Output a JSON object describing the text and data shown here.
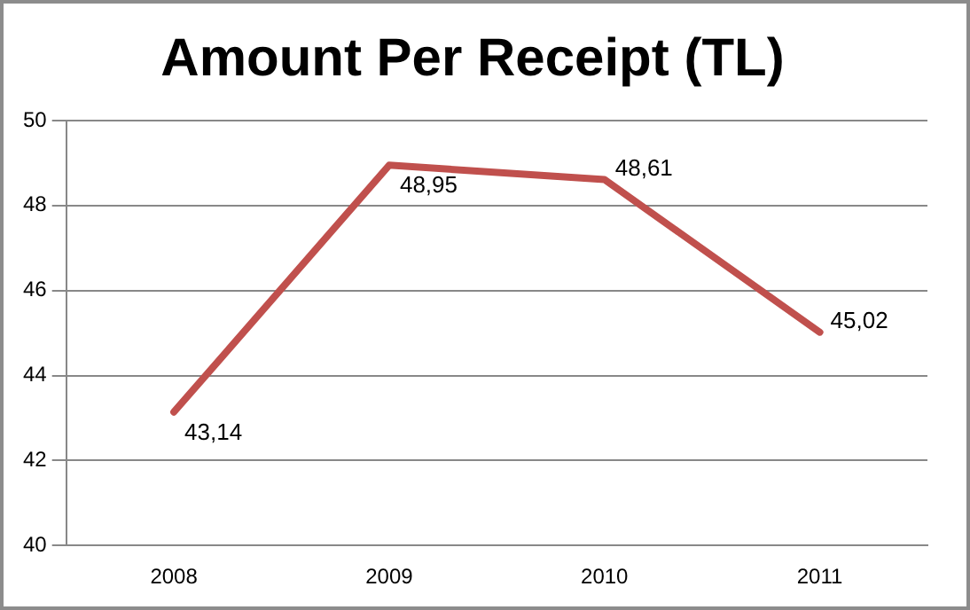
{
  "chart_data": {
    "type": "line",
    "title": "Amount Per Receipt (TL)",
    "categories": [
      "2008",
      "2009",
      "2010",
      "2011"
    ],
    "series": [
      {
        "color": "#c0504d",
        "values": [
          43.14,
          48.95,
          48.61,
          45.02
        ],
        "value_labels": [
          "43,14",
          "48,95",
          "48,61",
          "45,02"
        ]
      }
    ],
    "ylim": [
      40,
      50
    ],
    "yticks": [
      40,
      42,
      44,
      46,
      48,
      50
    ],
    "grid": "y",
    "legend": false,
    "marker": "none"
  }
}
